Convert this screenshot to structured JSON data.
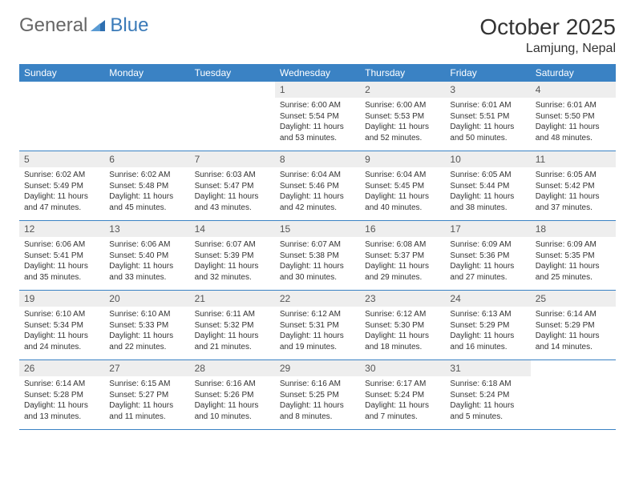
{
  "brand": {
    "part1": "General",
    "part2": "Blue"
  },
  "title": {
    "month": "October 2025",
    "location": "Lamjung, Nepal"
  },
  "colors": {
    "header_bg": "#3a82c4",
    "header_text": "#ffffff",
    "daynum_bg": "#eeeeee",
    "border": "#3a82c4",
    "brand_blue": "#3a7ab8",
    "text": "#333333"
  },
  "weekdays": [
    "Sunday",
    "Monday",
    "Tuesday",
    "Wednesday",
    "Thursday",
    "Friday",
    "Saturday"
  ],
  "weeks": [
    [
      null,
      null,
      null,
      {
        "n": "1",
        "sr": "6:00 AM",
        "ss": "5:54 PM",
        "dl": "11 hours and 53 minutes."
      },
      {
        "n": "2",
        "sr": "6:00 AM",
        "ss": "5:53 PM",
        "dl": "11 hours and 52 minutes."
      },
      {
        "n": "3",
        "sr": "6:01 AM",
        "ss": "5:51 PM",
        "dl": "11 hours and 50 minutes."
      },
      {
        "n": "4",
        "sr": "6:01 AM",
        "ss": "5:50 PM",
        "dl": "11 hours and 48 minutes."
      }
    ],
    [
      {
        "n": "5",
        "sr": "6:02 AM",
        "ss": "5:49 PM",
        "dl": "11 hours and 47 minutes."
      },
      {
        "n": "6",
        "sr": "6:02 AM",
        "ss": "5:48 PM",
        "dl": "11 hours and 45 minutes."
      },
      {
        "n": "7",
        "sr": "6:03 AM",
        "ss": "5:47 PM",
        "dl": "11 hours and 43 minutes."
      },
      {
        "n": "8",
        "sr": "6:04 AM",
        "ss": "5:46 PM",
        "dl": "11 hours and 42 minutes."
      },
      {
        "n": "9",
        "sr": "6:04 AM",
        "ss": "5:45 PM",
        "dl": "11 hours and 40 minutes."
      },
      {
        "n": "10",
        "sr": "6:05 AM",
        "ss": "5:44 PM",
        "dl": "11 hours and 38 minutes."
      },
      {
        "n": "11",
        "sr": "6:05 AM",
        "ss": "5:42 PM",
        "dl": "11 hours and 37 minutes."
      }
    ],
    [
      {
        "n": "12",
        "sr": "6:06 AM",
        "ss": "5:41 PM",
        "dl": "11 hours and 35 minutes."
      },
      {
        "n": "13",
        "sr": "6:06 AM",
        "ss": "5:40 PM",
        "dl": "11 hours and 33 minutes."
      },
      {
        "n": "14",
        "sr": "6:07 AM",
        "ss": "5:39 PM",
        "dl": "11 hours and 32 minutes."
      },
      {
        "n": "15",
        "sr": "6:07 AM",
        "ss": "5:38 PM",
        "dl": "11 hours and 30 minutes."
      },
      {
        "n": "16",
        "sr": "6:08 AM",
        "ss": "5:37 PM",
        "dl": "11 hours and 29 minutes."
      },
      {
        "n": "17",
        "sr": "6:09 AM",
        "ss": "5:36 PM",
        "dl": "11 hours and 27 minutes."
      },
      {
        "n": "18",
        "sr": "6:09 AM",
        "ss": "5:35 PM",
        "dl": "11 hours and 25 minutes."
      }
    ],
    [
      {
        "n": "19",
        "sr": "6:10 AM",
        "ss": "5:34 PM",
        "dl": "11 hours and 24 minutes."
      },
      {
        "n": "20",
        "sr": "6:10 AM",
        "ss": "5:33 PM",
        "dl": "11 hours and 22 minutes."
      },
      {
        "n": "21",
        "sr": "6:11 AM",
        "ss": "5:32 PM",
        "dl": "11 hours and 21 minutes."
      },
      {
        "n": "22",
        "sr": "6:12 AM",
        "ss": "5:31 PM",
        "dl": "11 hours and 19 minutes."
      },
      {
        "n": "23",
        "sr": "6:12 AM",
        "ss": "5:30 PM",
        "dl": "11 hours and 18 minutes."
      },
      {
        "n": "24",
        "sr": "6:13 AM",
        "ss": "5:29 PM",
        "dl": "11 hours and 16 minutes."
      },
      {
        "n": "25",
        "sr": "6:14 AM",
        "ss": "5:29 PM",
        "dl": "11 hours and 14 minutes."
      }
    ],
    [
      {
        "n": "26",
        "sr": "6:14 AM",
        "ss": "5:28 PM",
        "dl": "11 hours and 13 minutes."
      },
      {
        "n": "27",
        "sr": "6:15 AM",
        "ss": "5:27 PM",
        "dl": "11 hours and 11 minutes."
      },
      {
        "n": "28",
        "sr": "6:16 AM",
        "ss": "5:26 PM",
        "dl": "11 hours and 10 minutes."
      },
      {
        "n": "29",
        "sr": "6:16 AM",
        "ss": "5:25 PM",
        "dl": "11 hours and 8 minutes."
      },
      {
        "n": "30",
        "sr": "6:17 AM",
        "ss": "5:24 PM",
        "dl": "11 hours and 7 minutes."
      },
      {
        "n": "31",
        "sr": "6:18 AM",
        "ss": "5:24 PM",
        "dl": "11 hours and 5 minutes."
      },
      null
    ]
  ],
  "labels": {
    "sunrise": "Sunrise:",
    "sunset": "Sunset:",
    "daylight": "Daylight:"
  }
}
